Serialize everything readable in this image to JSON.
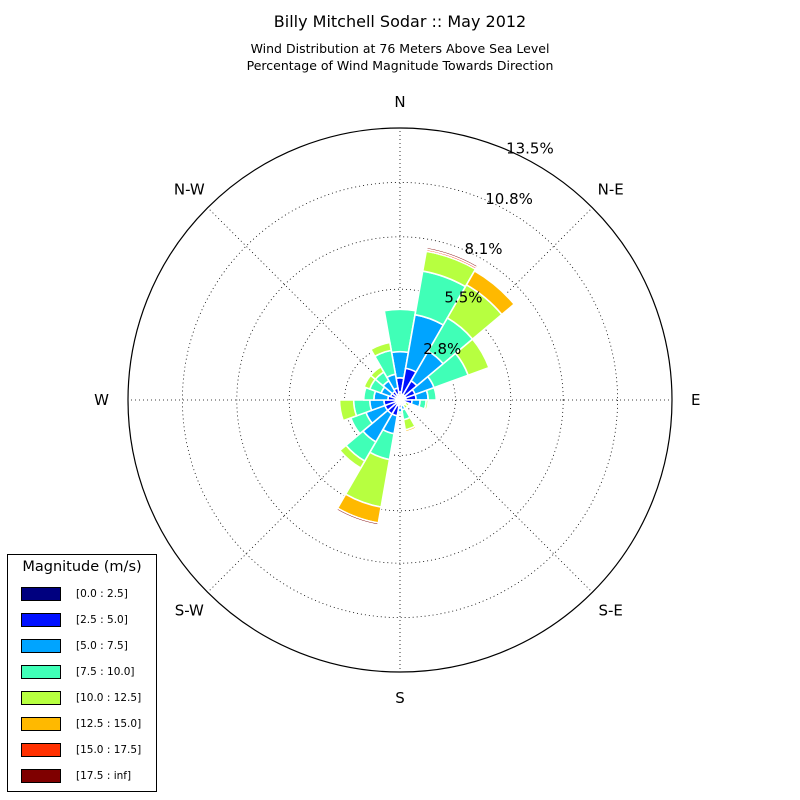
{
  "chart_data": {
    "type": "windrose",
    "title": "Billy Mitchell Sodar :: May 2012",
    "subtitle_lines": [
      "Wind Distribution at 76 Meters Above Sea Level",
      "Percentage of Wind Magnitude Towards Direction"
    ],
    "radial_tick_labels": [
      "2.8%",
      "5.5%",
      "8.1%",
      "10.8%",
      "13.5%"
    ],
    "radial_ticks": [
      2.75,
      5.5,
      8.1,
      10.8,
      13.5
    ],
    "radial_max": 13.5,
    "direction_labels": [
      "N",
      "N-E",
      "E",
      "S-E",
      "S",
      "S-W",
      "W",
      "N-W"
    ],
    "legend_title": "Magnitude (m/s)",
    "legend_bins": [
      {
        "label": "[0.0 : 2.5]",
        "color": "#00007f"
      },
      {
        "label": "[2.5 : 5.0]",
        "color": "#0010ff"
      },
      {
        "label": "[5.0 : 7.5]",
        "color": "#00a4ff"
      },
      {
        "label": "[7.5 : 10.0]",
        "color": "#40ffb7"
      },
      {
        "label": "[10.0 : 12.5]",
        "color": "#b7ff40"
      },
      {
        "label": "[12.5 : 15.0]",
        "color": "#ffb900"
      },
      {
        "label": "[15.0 : 17.5]",
        "color": "#ff3000"
      },
      {
        "label": "[17.5 : inf]",
        "color": "#7f0000"
      }
    ],
    "sector_width_deg": 20,
    "sectors": [
      {
        "direction_deg": 0,
        "cumulative": [
          0.4,
          1.1,
          2.4,
          4.5,
          4.5,
          4.5,
          4.5,
          4.5
        ]
      },
      {
        "direction_deg": 20,
        "cumulative": [
          0.3,
          1.6,
          4.3,
          6.5,
          7.5,
          7.5,
          7.6,
          7.7
        ]
      },
      {
        "direction_deg": 40,
        "cumulative": [
          0.3,
          1.1,
          2.8,
          4.7,
          6.6,
          7.4,
          7.4,
          7.4
        ]
      },
      {
        "direction_deg": 60,
        "cumulative": [
          0.3,
          0.8,
          1.8,
          3.6,
          4.7,
          4.7,
          4.7,
          4.7
        ]
      },
      {
        "direction_deg": 80,
        "cumulative": [
          0.3,
          0.8,
          1.4,
          1.8,
          1.8,
          1.8,
          1.8,
          1.8
        ]
      },
      {
        "direction_deg": 100,
        "cumulative": [
          0.2,
          0.6,
          1.0,
          1.3,
          1.4,
          1.4,
          1.4,
          1.4
        ]
      },
      {
        "direction_deg": 120,
        "cumulative": [
          0.1,
          0.2,
          0.3,
          0.3,
          0.5,
          0.5,
          0.5,
          0.5
        ]
      },
      {
        "direction_deg": 140,
        "cumulative": [
          0.1,
          0.2,
          0.3,
          0.3,
          0.5,
          0.5,
          0.5,
          0.5
        ]
      },
      {
        "direction_deg": 160,
        "cumulative": [
          0.2,
          0.3,
          0.5,
          1.0,
          1.5,
          1.6,
          1.6,
          1.6
        ]
      },
      {
        "direction_deg": 180,
        "cumulative": [
          0.2,
          0.4,
          0.6,
          0.7,
          0.7,
          0.7,
          0.7,
          0.7
        ]
      },
      {
        "direction_deg": 200,
        "cumulative": [
          0.3,
          0.8,
          1.7,
          3.0,
          5.4,
          6.2,
          6.2,
          6.3
        ]
      },
      {
        "direction_deg": 220,
        "cumulative": [
          0.2,
          0.8,
          2.4,
          3.5,
          3.9,
          3.9,
          3.9,
          3.9
        ]
      },
      {
        "direction_deg": 240,
        "cumulative": [
          0.2,
          0.8,
          1.8,
          2.6,
          2.6,
          2.6,
          2.6,
          2.6
        ]
      },
      {
        "direction_deg": 260,
        "cumulative": [
          0.2,
          0.8,
          1.5,
          2.3,
          3.0,
          3.0,
          3.0,
          3.0
        ]
      },
      {
        "direction_deg": 280,
        "cumulative": [
          0.2,
          0.6,
          1.3,
          1.8,
          1.8,
          1.8,
          1.8,
          1.8
        ]
      },
      {
        "direction_deg": 300,
        "cumulative": [
          0.2,
          0.5,
          1.0,
          1.6,
          1.9,
          1.9,
          1.9,
          1.9
        ]
      },
      {
        "direction_deg": 320,
        "cumulative": [
          0.2,
          0.5,
          1.1,
          1.6,
          1.9,
          1.9,
          1.9,
          1.9
        ]
      },
      {
        "direction_deg": 340,
        "cumulative": [
          0.3,
          0.6,
          1.3,
          2.5,
          2.9,
          2.9,
          2.9,
          2.9
        ]
      }
    ]
  }
}
